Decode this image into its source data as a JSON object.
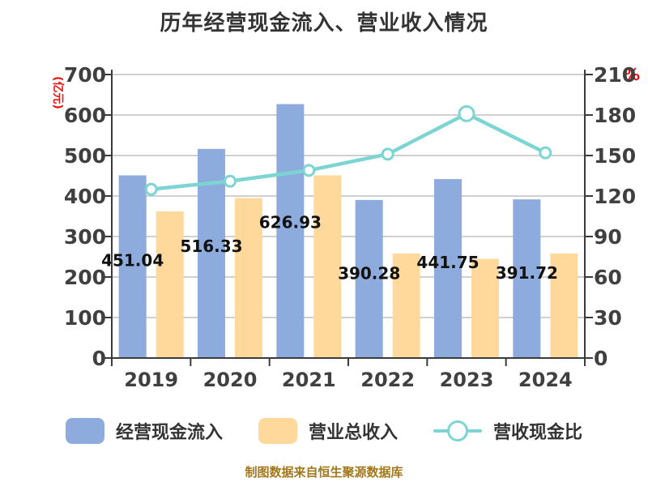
{
  "title": "历年经营现金流入、营业收入情况",
  "footer": "制图数据来自恒生聚源数据库",
  "colors": {
    "bar_cash": "#8DABDC",
    "bar_revenue": "#FFD99B",
    "line_ratio": "#7CD5D2",
    "marker_fill": "#FFFFFF",
    "grid": "#C9C9C9",
    "axis": "#3B3B3B",
    "tick_text": "#404040",
    "axis_unit_text": "#EE1111",
    "title_text": "#333333",
    "data_label_text": "#111111",
    "footer_text": "#A3781C",
    "background": "#FFFFFF"
  },
  "chart_data": {
    "type": "bar+line combo",
    "title": "历年经营现金流入、营业收入情况",
    "categories": [
      "2019",
      "2020",
      "2021",
      "2022",
      "2023",
      "2024"
    ],
    "series": [
      {
        "key": "cash-inflow",
        "name": "经营现金流入",
        "type": "bar",
        "axis": "left",
        "color": "#8DABDC",
        "values": [
          451.04,
          516.33,
          626.93,
          390.28,
          441.75,
          391.72
        ],
        "data_labels": [
          "451.04",
          "516.33",
          "626.93",
          "390.28",
          "441.75",
          "391.72"
        ]
      },
      {
        "key": "total-revenue",
        "name": "营业总收入",
        "type": "bar",
        "axis": "left",
        "color": "#FFD99B",
        "values": [
          362,
          395,
          451,
          258,
          245,
          258
        ]
      },
      {
        "key": "cash-ratio",
        "name": "营收现金比",
        "type": "line",
        "axis": "right",
        "color": "#7CD5D2",
        "values": [
          125,
          131,
          139,
          151,
          181,
          152
        ],
        "highlight_index": 4
      }
    ],
    "left_axis": {
      "unit": "(亿元)",
      "min": 0,
      "max": 700,
      "ticks": [
        700,
        600,
        500,
        400,
        300,
        200,
        100,
        0
      ]
    },
    "right_axis": {
      "unit": "%",
      "min": 0,
      "max": 210,
      "ticks": [
        210,
        180,
        150,
        120,
        90,
        60,
        30,
        0
      ]
    },
    "grid": true,
    "legend_position": "bottom"
  }
}
